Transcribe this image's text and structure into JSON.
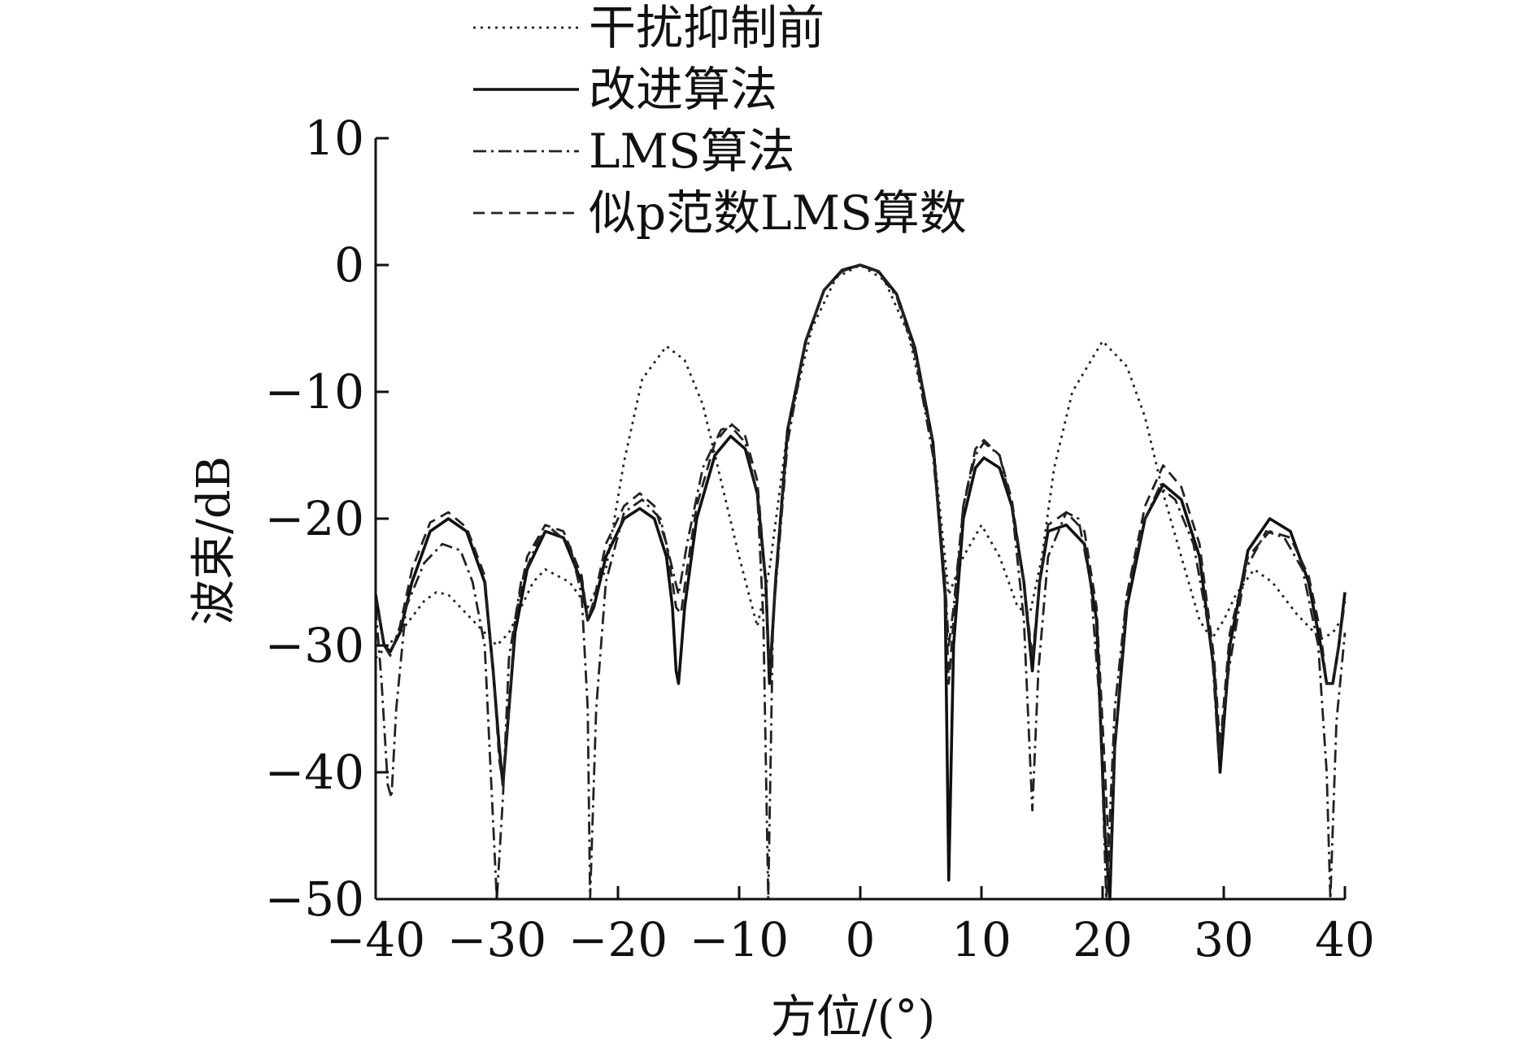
{
  "chart_data": {
    "type": "line",
    "xlabel": "方位/(°)",
    "ylabel": "波束/dB",
    "xlim": [
      -40,
      40
    ],
    "ylim": [
      -50,
      10
    ],
    "xticks": [
      -40,
      -30,
      -20,
      -10,
      0,
      10,
      20,
      30,
      40
    ],
    "yticks": [
      10,
      0,
      -10,
      -20,
      -30,
      -40,
      -50
    ],
    "xtick_labels": [
      "−40",
      "−30",
      "−20",
      "−10",
      "0",
      "10",
      "20",
      "30",
      "40"
    ],
    "ytick_labels": [
      "10",
      "0",
      "−10",
      "−20",
      "−30",
      "−40",
      "−50"
    ],
    "grid": false,
    "legend_position": "top",
    "series": [
      {
        "name": "干扰抑制前",
        "style": "dotted",
        "color": "#222222",
        "points": [
          [
            -40,
            -31
          ],
          [
            -38,
            -29
          ],
          [
            -36,
            -26.5
          ],
          [
            -35,
            -25.8
          ],
          [
            -34,
            -26
          ],
          [
            -32,
            -28
          ],
          [
            -30,
            -30
          ],
          [
            -29,
            -29
          ],
          [
            -27,
            -25
          ],
          [
            -26,
            -24
          ],
          [
            -24,
            -25
          ],
          [
            -22.5,
            -27
          ],
          [
            -21,
            -24
          ],
          [
            -19.5,
            -15.5
          ],
          [
            -18,
            -9
          ],
          [
            -16,
            -6.4
          ],
          [
            -14.5,
            -7.5
          ],
          [
            -13,
            -11
          ],
          [
            -11.5,
            -17
          ],
          [
            -10,
            -23
          ],
          [
            -8.5,
            -28.5
          ],
          [
            -7.5,
            -24
          ],
          [
            -6,
            -13
          ],
          [
            -4,
            -5
          ],
          [
            -2,
            -1
          ],
          [
            0,
            0
          ],
          [
            2,
            -1.2
          ],
          [
            4,
            -5.5
          ],
          [
            6,
            -14
          ],
          [
            7.3,
            -26
          ],
          [
            8.5,
            -23
          ],
          [
            10,
            -20.5
          ],
          [
            11.5,
            -23
          ],
          [
            13,
            -27
          ],
          [
            14,
            -27.5
          ],
          [
            15,
            -23
          ],
          [
            16,
            -16
          ],
          [
            17.5,
            -10
          ],
          [
            20,
            -6
          ],
          [
            22,
            -8
          ],
          [
            23.5,
            -12
          ],
          [
            25,
            -18
          ],
          [
            26.5,
            -23
          ],
          [
            28,
            -28
          ],
          [
            29,
            -29.5
          ],
          [
            30,
            -28
          ],
          [
            31,
            -26
          ],
          [
            32.5,
            -24
          ],
          [
            34,
            -25
          ],
          [
            36,
            -27.5
          ],
          [
            38,
            -29.5
          ],
          [
            39,
            -29
          ],
          [
            40,
            -27.5
          ]
        ]
      },
      {
        "name": "改进算法",
        "style": "solid",
        "color": "#111111",
        "points": [
          [
            -40,
            -26
          ],
          [
            -39.3,
            -30
          ],
          [
            -38.8,
            -30.5
          ],
          [
            -38,
            -29
          ],
          [
            -37,
            -25
          ],
          [
            -35.5,
            -21
          ],
          [
            -34,
            -20
          ],
          [
            -32.5,
            -21
          ],
          [
            -31,
            -25
          ],
          [
            -30.3,
            -32
          ],
          [
            -29.8,
            -38
          ],
          [
            -29.5,
            -41
          ],
          [
            -29,
            -35
          ],
          [
            -28.5,
            -29
          ],
          [
            -27.5,
            -24
          ],
          [
            -26,
            -21
          ],
          [
            -24.5,
            -21.5
          ],
          [
            -23,
            -25
          ],
          [
            -22.5,
            -28
          ],
          [
            -22,
            -27
          ],
          [
            -21,
            -23
          ],
          [
            -19.5,
            -20
          ],
          [
            -18.2,
            -19.2
          ],
          [
            -17,
            -20
          ],
          [
            -16,
            -23
          ],
          [
            -15.5,
            -27
          ],
          [
            -15.2,
            -32
          ],
          [
            -15,
            -33
          ],
          [
            -14.5,
            -27
          ],
          [
            -13.5,
            -20
          ],
          [
            -12,
            -15
          ],
          [
            -10.7,
            -13.5
          ],
          [
            -9.5,
            -14.5
          ],
          [
            -8.5,
            -18
          ],
          [
            -7.8,
            -25
          ],
          [
            -7.5,
            -33
          ],
          [
            -7,
            -25
          ],
          [
            -6,
            -13
          ],
          [
            -4.5,
            -6
          ],
          [
            -3,
            -2
          ],
          [
            -1.5,
            -0.4
          ],
          [
            0,
            0
          ],
          [
            1.5,
            -0.5
          ],
          [
            3,
            -2.3
          ],
          [
            4.5,
            -6.5
          ],
          [
            6,
            -14
          ],
          [
            7,
            -26
          ],
          [
            7.3,
            -48.5
          ],
          [
            7.7,
            -30
          ],
          [
            8.5,
            -20
          ],
          [
            9.5,
            -16
          ],
          [
            10.2,
            -15.2
          ],
          [
            11.5,
            -16
          ],
          [
            12.5,
            -19
          ],
          [
            13.5,
            -25
          ],
          [
            14.2,
            -32
          ],
          [
            14.8,
            -25
          ],
          [
            15.5,
            -21
          ],
          [
            17,
            -20.5
          ],
          [
            18.5,
            -22
          ],
          [
            19.5,
            -28
          ],
          [
            20.2,
            -45
          ],
          [
            20.6,
            -50
          ],
          [
            21,
            -38
          ],
          [
            22,
            -27
          ],
          [
            23.5,
            -20
          ],
          [
            25,
            -17.3
          ],
          [
            26.5,
            -18.5
          ],
          [
            28,
            -23
          ],
          [
            29.2,
            -32
          ],
          [
            29.7,
            -40
          ],
          [
            30.5,
            -30
          ],
          [
            32,
            -22.5
          ],
          [
            33.8,
            -20
          ],
          [
            35.5,
            -21
          ],
          [
            37,
            -25
          ],
          [
            38,
            -30
          ],
          [
            38.5,
            -33
          ],
          [
            39,
            -33
          ],
          [
            39.5,
            -30
          ],
          [
            40,
            -25.8
          ]
        ]
      },
      {
        "name": "LMS算法",
        "style": "dashdot",
        "color": "#222222",
        "points": [
          [
            -40,
            -27
          ],
          [
            -39.5,
            -33
          ],
          [
            -39,
            -41
          ],
          [
            -38.7,
            -42
          ],
          [
            -38.3,
            -35
          ],
          [
            -37.5,
            -27
          ],
          [
            -36,
            -23.5
          ],
          [
            -34.5,
            -22
          ],
          [
            -33,
            -22.5
          ],
          [
            -32,
            -25
          ],
          [
            -31,
            -30
          ],
          [
            -30.5,
            -40
          ],
          [
            -30,
            -50
          ],
          [
            -29.5,
            -42
          ],
          [
            -29,
            -31
          ],
          [
            -28,
            -25
          ],
          [
            -26.5,
            -21.5
          ],
          [
            -25.5,
            -20.8
          ],
          [
            -24,
            -22
          ],
          [
            -23,
            -26
          ],
          [
            -22.5,
            -35
          ],
          [
            -22.3,
            -50
          ],
          [
            -21.8,
            -35
          ],
          [
            -21,
            -25
          ],
          [
            -19.5,
            -19.5
          ],
          [
            -18,
            -18.5
          ],
          [
            -16.5,
            -20
          ],
          [
            -15.5,
            -24
          ],
          [
            -15,
            -26
          ],
          [
            -14.3,
            -22
          ],
          [
            -13,
            -16
          ],
          [
            -11.5,
            -13
          ],
          [
            -10.7,
            -12.7
          ],
          [
            -9.5,
            -14
          ],
          [
            -8.5,
            -18
          ],
          [
            -8,
            -28
          ],
          [
            -7.6,
            -50
          ],
          [
            -7.2,
            -28
          ],
          [
            -6,
            -14
          ],
          [
            -4.5,
            -6
          ],
          [
            -3,
            -2
          ],
          [
            -1.5,
            -0.5
          ],
          [
            0,
            0
          ],
          [
            1.5,
            -0.6
          ],
          [
            3,
            -2.5
          ],
          [
            4.5,
            -7
          ],
          [
            6,
            -15
          ],
          [
            7,
            -25
          ],
          [
            7.3,
            -30
          ],
          [
            7.7,
            -27
          ],
          [
            8.5,
            -19
          ],
          [
            9.5,
            -15
          ],
          [
            10.2,
            -14
          ],
          [
            11.5,
            -15
          ],
          [
            12.5,
            -19
          ],
          [
            13.5,
            -28
          ],
          [
            14.2,
            -43
          ],
          [
            14.7,
            -32
          ],
          [
            15.5,
            -23
          ],
          [
            17,
            -19.5
          ],
          [
            18,
            -20
          ],
          [
            19,
            -25
          ],
          [
            19.8,
            -35
          ],
          [
            20.3,
            -50
          ],
          [
            21,
            -35
          ],
          [
            22,
            -26
          ],
          [
            23.5,
            -20
          ],
          [
            24.7,
            -17.5
          ],
          [
            26,
            -18.5
          ],
          [
            27.5,
            -22
          ],
          [
            29,
            -30
          ],
          [
            29.6,
            -39
          ],
          [
            30.4,
            -32
          ],
          [
            31.8,
            -24
          ],
          [
            33.5,
            -21
          ],
          [
            35,
            -21.5
          ],
          [
            36.5,
            -24
          ],
          [
            37.8,
            -30
          ],
          [
            38.5,
            -40
          ],
          [
            38.8,
            -50
          ],
          [
            39.3,
            -36
          ],
          [
            40,
            -29
          ]
        ]
      },
      {
        "name": "似p范数LMS算数",
        "style": "dashed",
        "color": "#222222",
        "points": [
          [
            -40,
            -26
          ],
          [
            -39.3,
            -30
          ],
          [
            -38.8,
            -30.8
          ],
          [
            -38,
            -28.5
          ],
          [
            -37,
            -24
          ],
          [
            -35.5,
            -20.3
          ],
          [
            -34,
            -19.5
          ],
          [
            -32.5,
            -20.7
          ],
          [
            -31,
            -24.5
          ],
          [
            -30.3,
            -32
          ],
          [
            -29.8,
            -39
          ],
          [
            -29.5,
            -41
          ],
          [
            -29,
            -35
          ],
          [
            -28.5,
            -28
          ],
          [
            -27.5,
            -23
          ],
          [
            -26,
            -20.5
          ],
          [
            -24.5,
            -21
          ],
          [
            -23,
            -24.5
          ],
          [
            -22.5,
            -28
          ],
          [
            -22,
            -26.5
          ],
          [
            -21,
            -22
          ],
          [
            -19.5,
            -19
          ],
          [
            -18.2,
            -18
          ],
          [
            -17,
            -19
          ],
          [
            -16,
            -22
          ],
          [
            -15.5,
            -25
          ],
          [
            -15.2,
            -27
          ],
          [
            -14.8,
            -27.5
          ],
          [
            -14.3,
            -24
          ],
          [
            -13.5,
            -19
          ],
          [
            -12,
            -14
          ],
          [
            -10.7,
            -12.5
          ],
          [
            -9.5,
            -13.5
          ],
          [
            -8.5,
            -17
          ],
          [
            -7.8,
            -25
          ],
          [
            -7.5,
            -32
          ],
          [
            -7,
            -25
          ],
          [
            -6,
            -13
          ],
          [
            -4.5,
            -6
          ],
          [
            -3,
            -2
          ],
          [
            -1.5,
            -0.4
          ],
          [
            0,
            0
          ],
          [
            1.5,
            -0.5
          ],
          [
            3,
            -2.3
          ],
          [
            4.5,
            -6.5
          ],
          [
            6,
            -14
          ],
          [
            7,
            -25
          ],
          [
            7.3,
            -33
          ],
          [
            7.7,
            -28
          ],
          [
            8.5,
            -19
          ],
          [
            9.5,
            -14.5
          ],
          [
            10.2,
            -13.8
          ],
          [
            11.5,
            -15
          ],
          [
            12.5,
            -18.5
          ],
          [
            13.5,
            -25
          ],
          [
            14.2,
            -31
          ],
          [
            14.8,
            -25
          ],
          [
            15.5,
            -20.5
          ],
          [
            17,
            -19.5
          ],
          [
            18.5,
            -21
          ],
          [
            19.5,
            -27
          ],
          [
            20.2,
            -40
          ],
          [
            20.6,
            -48
          ],
          [
            21,
            -38
          ],
          [
            22,
            -26
          ],
          [
            23.5,
            -19
          ],
          [
            25,
            -15.8
          ],
          [
            26.5,
            -17.5
          ],
          [
            28,
            -22
          ],
          [
            29.2,
            -31
          ],
          [
            29.7,
            -38
          ],
          [
            30.5,
            -29
          ],
          [
            32,
            -23
          ],
          [
            33.8,
            -21
          ],
          [
            35.5,
            -21.5
          ],
          [
            37,
            -24.5
          ],
          [
            38,
            -29
          ],
          [
            38.5,
            -33
          ],
          [
            39,
            -33
          ],
          [
            39.5,
            -30
          ],
          [
            40,
            -26.5
          ]
        ]
      }
    ]
  }
}
